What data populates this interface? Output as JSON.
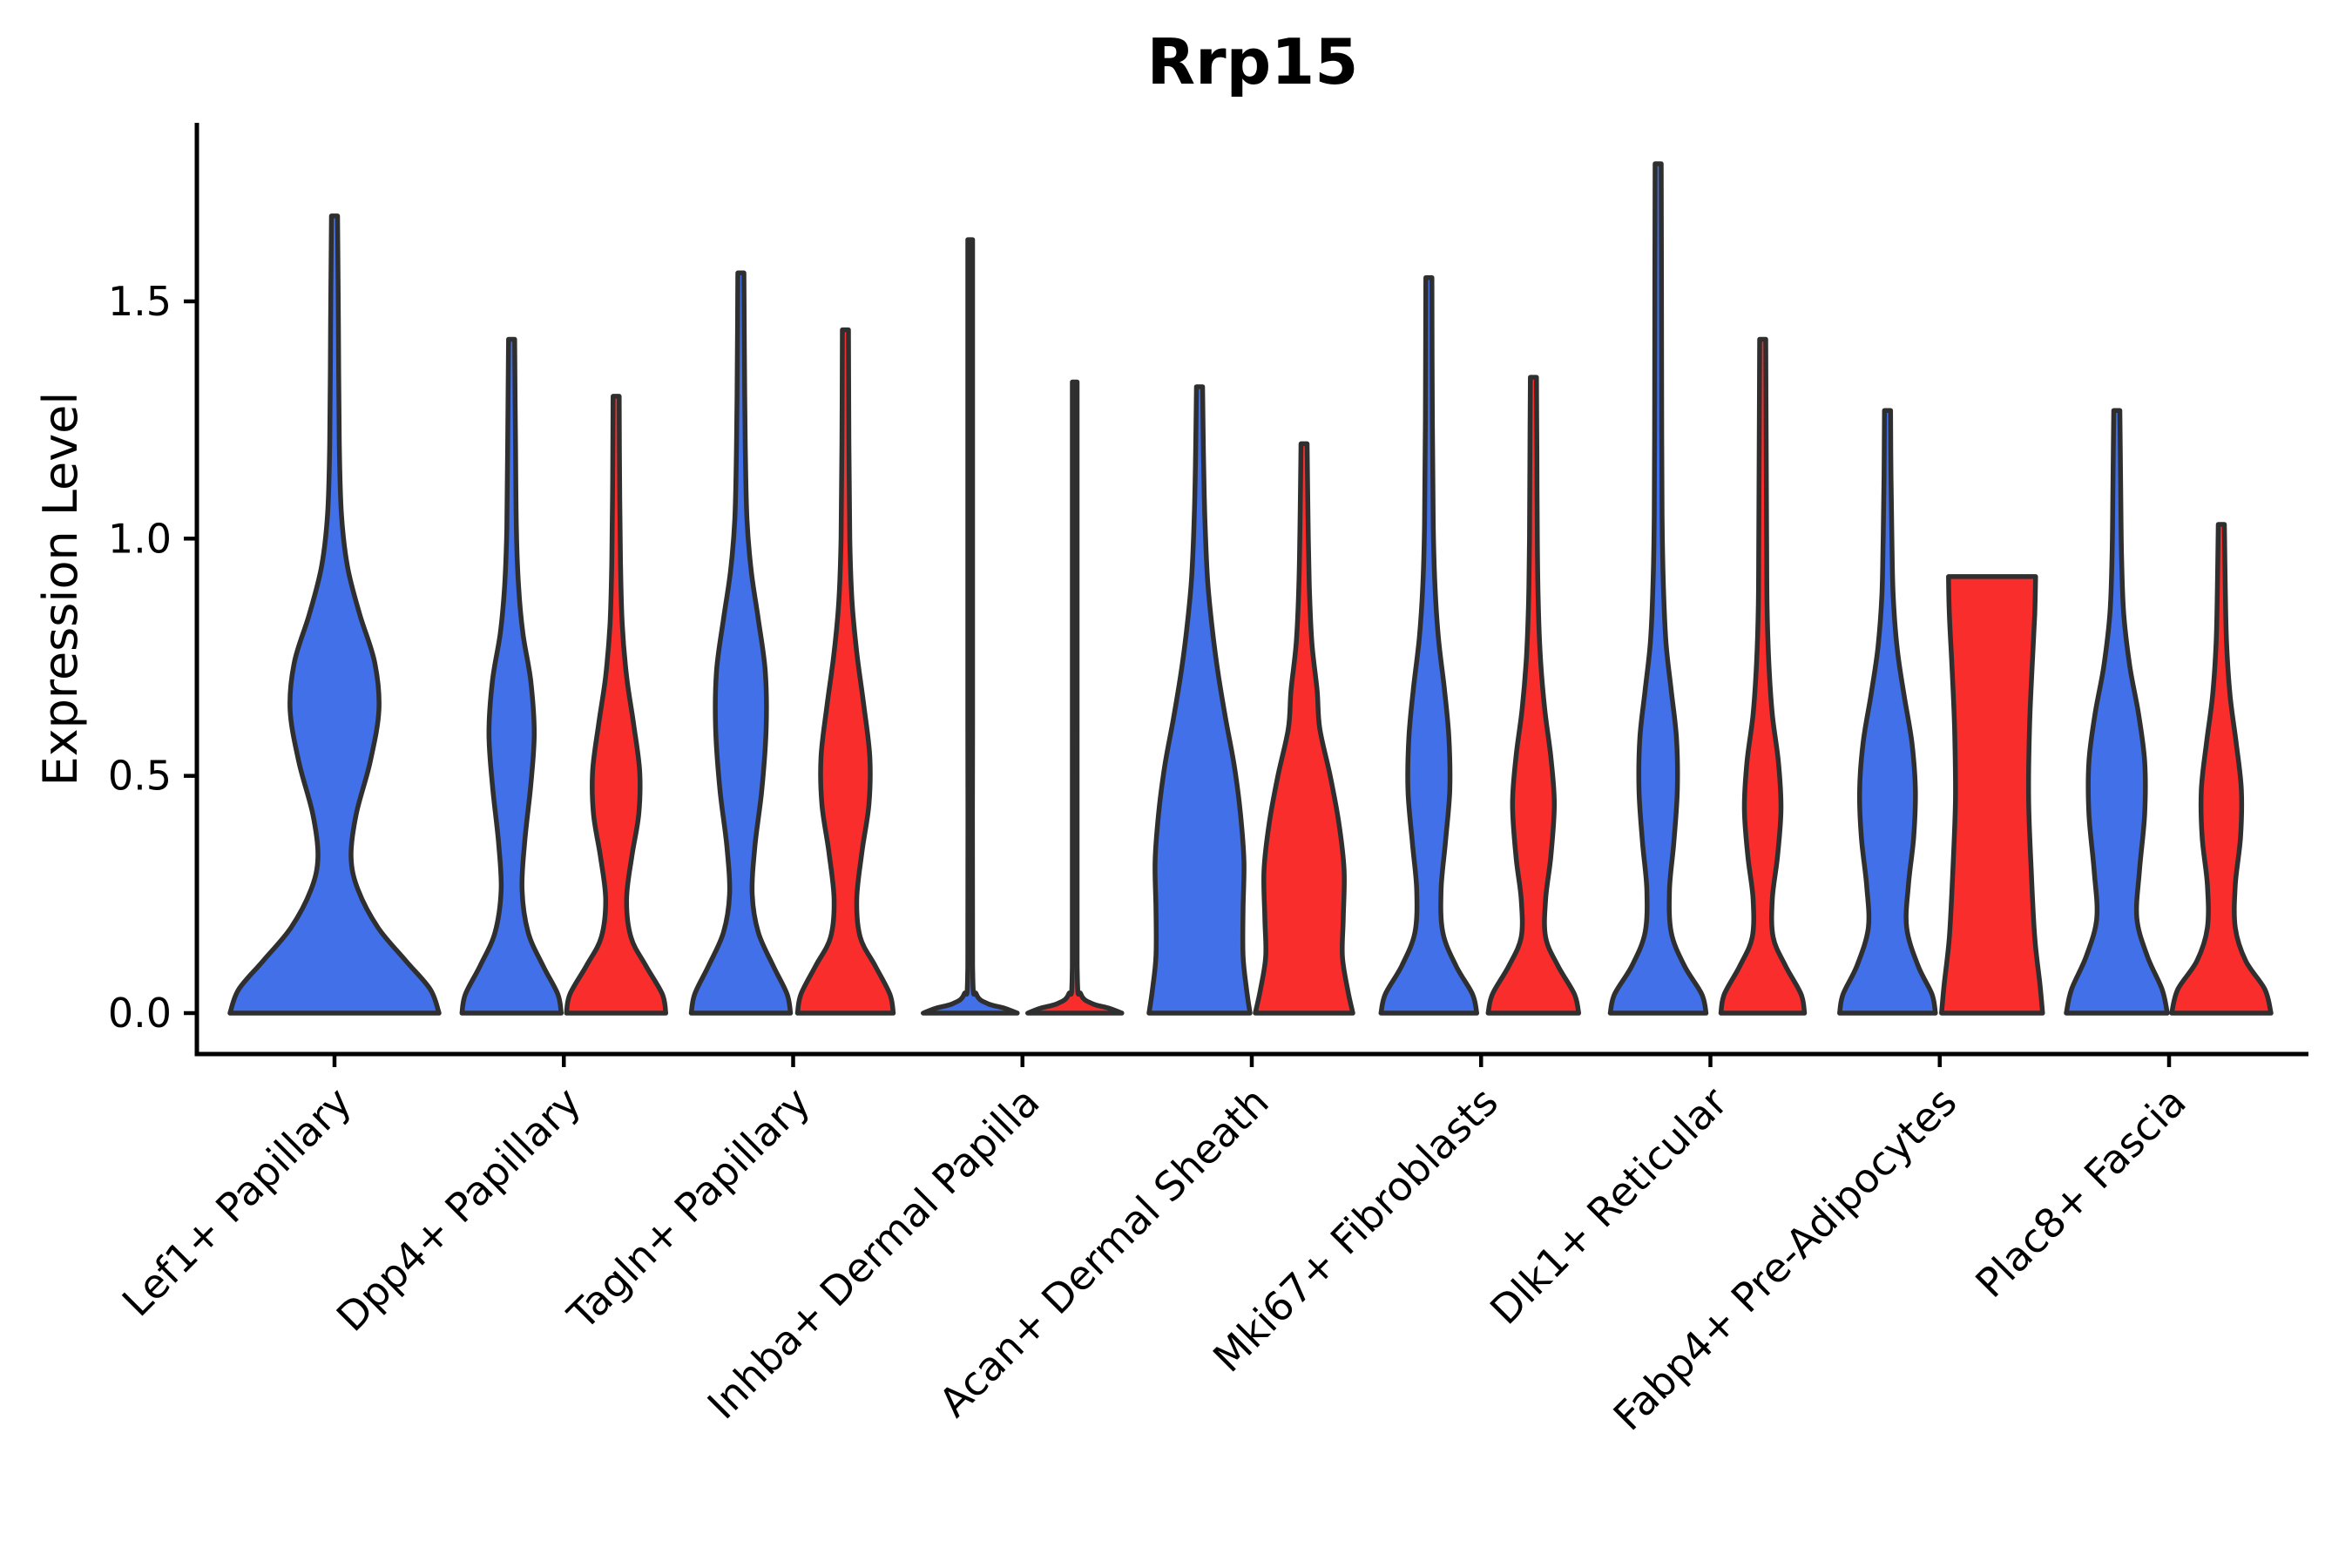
{
  "title": "Rrp15",
  "y_axis": {
    "label": "Expression Level",
    "ticks": [
      "0.0",
      "0.5",
      "1.0",
      "1.5"
    ],
    "tick_values": [
      0.0,
      0.5,
      1.0,
      1.5
    ]
  },
  "x_axis": {
    "categories": [
      "Lef1+ Papillary",
      "Dpp4+ Papillary",
      "Tagln+ Papillary",
      "Inhba+ Dermal Papilla",
      "Acan+ Dermal Sheath",
      "Mki67+ Fibroblasts",
      "Dlk1+ Reticular",
      "Fabp4+ Pre-Adipocytes",
      "Plac8+ Fascia"
    ]
  },
  "colors": {
    "blue": "#4170E8",
    "red": "#FA2D2D",
    "outline": "#2F2F2F",
    "axis": "#000000",
    "text": "#000000"
  },
  "chart_data": {
    "type": "violin",
    "title": "Rrp15",
    "xlabel": "",
    "ylabel": "Expression Level",
    "ylim": [
      -0.09,
      1.9
    ],
    "yticks": [
      0.0,
      0.5,
      1.0,
      1.5
    ],
    "grid": false,
    "legend": "none",
    "categories": [
      "Lef1+ Papillary",
      "Dpp4+ Papillary",
      "Tagln+ Papillary",
      "Inhba+ Dermal Papilla",
      "Acan+ Dermal Sheath",
      "Mki67+ Fibroblasts",
      "Dlk1+ Reticular",
      "Fabp4+ Pre-Adipocytes",
      "Plac8+ Fascia"
    ],
    "series": [
      {
        "name": "blue",
        "color": "#4170E8",
        "tip_values": [
          1.68,
          1.42,
          1.56,
          1.63,
          1.32,
          1.55,
          1.79,
          1.27,
          1.27
        ]
      },
      {
        "name": "red",
        "color": "#FA2D2D",
        "tip_values": [
          null,
          1.3,
          1.44,
          1.33,
          1.2,
          1.34,
          1.42,
          0.92,
          1.03
        ]
      }
    ],
    "violins": [
      {
        "category": 0,
        "series": "blue",
        "centered": true,
        "tip": 1.68,
        "flat_top": false,
        "profile": [
          [
            0,
            120
          ],
          [
            0.05,
            110
          ],
          [
            0.11,
            82
          ],
          [
            0.18,
            50
          ],
          [
            0.26,
            27
          ],
          [
            0.33,
            19
          ],
          [
            0.42,
            25
          ],
          [
            0.53,
            41
          ],
          [
            0.64,
            51
          ],
          [
            0.74,
            46
          ],
          [
            0.84,
            29
          ],
          [
            0.94,
            15
          ],
          [
            1.05,
            8
          ],
          [
            1.2,
            5.5
          ],
          [
            1.45,
            4.5
          ],
          [
            1.68,
            3.5
          ]
        ]
      },
      {
        "category": 1,
        "series": "blue",
        "centered": false,
        "tip": 1.42,
        "flat_top": false,
        "profile": [
          [
            0,
            57
          ],
          [
            0.04,
            53
          ],
          [
            0.1,
            36
          ],
          [
            0.17,
            19
          ],
          [
            0.26,
            12
          ],
          [
            0.36,
            15
          ],
          [
            0.48,
            22
          ],
          [
            0.59,
            26
          ],
          [
            0.7,
            22
          ],
          [
            0.8,
            13
          ],
          [
            0.9,
            8
          ],
          [
            1.02,
            5.5
          ],
          [
            1.2,
            4.5
          ],
          [
            1.42,
            3.5
          ]
        ]
      },
      {
        "category": 1,
        "series": "red",
        "centered": false,
        "tip": 1.3,
        "flat_top": false,
        "profile": [
          [
            0,
            57
          ],
          [
            0.04,
            53
          ],
          [
            0.1,
            34
          ],
          [
            0.16,
            17
          ],
          [
            0.24,
            12
          ],
          [
            0.33,
            18
          ],
          [
            0.42,
            26
          ],
          [
            0.51,
            27
          ],
          [
            0.61,
            20
          ],
          [
            0.71,
            12
          ],
          [
            0.82,
            7
          ],
          [
            0.95,
            5
          ],
          [
            1.12,
            4
          ],
          [
            1.3,
            3.5
          ]
        ]
      },
      {
        "category": 2,
        "series": "blue",
        "centered": false,
        "tip": 1.56,
        "flat_top": false,
        "profile": [
          [
            0,
            57
          ],
          [
            0.04,
            53
          ],
          [
            0.1,
            37
          ],
          [
            0.17,
            20
          ],
          [
            0.25,
            13
          ],
          [
            0.35,
            16
          ],
          [
            0.47,
            24
          ],
          [
            0.6,
            29
          ],
          [
            0.72,
            28
          ],
          [
            0.83,
            20
          ],
          [
            0.93,
            12
          ],
          [
            1.04,
            7
          ],
          [
            1.2,
            5
          ],
          [
            1.4,
            4
          ],
          [
            1.56,
            3.5
          ]
        ]
      },
      {
        "category": 2,
        "series": "red",
        "centered": false,
        "tip": 1.44,
        "flat_top": false,
        "profile": [
          [
            0,
            55
          ],
          [
            0.04,
            51
          ],
          [
            0.1,
            34
          ],
          [
            0.16,
            17
          ],
          [
            0.24,
            13
          ],
          [
            0.34,
            19
          ],
          [
            0.44,
            27
          ],
          [
            0.54,
            28
          ],
          [
            0.65,
            21
          ],
          [
            0.76,
            13
          ],
          [
            0.87,
            7.5
          ],
          [
            1.0,
            5
          ],
          [
            1.2,
            4
          ],
          [
            1.44,
            3.5
          ]
        ]
      },
      {
        "category": 3,
        "series": "blue",
        "centered": false,
        "tip": 1.63,
        "flat_top": false,
        "profile": [
          [
            0,
            54
          ],
          [
            0.01,
            40
          ],
          [
            0.02,
            20
          ],
          [
            0.04,
            7
          ],
          [
            0.1,
            2.8
          ],
          [
            0.6,
            2.8
          ],
          [
            1.1,
            2.8
          ],
          [
            1.63,
            2.8
          ]
        ]
      },
      {
        "category": 3,
        "series": "red",
        "centered": false,
        "tip": 1.33,
        "flat_top": false,
        "profile": [
          [
            0,
            54
          ],
          [
            0.01,
            40
          ],
          [
            0.02,
            20
          ],
          [
            0.04,
            7
          ],
          [
            0.1,
            2.8
          ],
          [
            0.6,
            2.8
          ],
          [
            1.33,
            2.8
          ]
        ]
      },
      {
        "category": 4,
        "series": "blue",
        "centered": false,
        "tip": 1.32,
        "flat_top": false,
        "profile": [
          [
            0,
            58
          ],
          [
            0.05,
            54
          ],
          [
            0.12,
            50
          ],
          [
            0.22,
            50
          ],
          [
            0.32,
            51
          ],
          [
            0.42,
            47
          ],
          [
            0.52,
            40
          ],
          [
            0.62,
            30
          ],
          [
            0.72,
            21
          ],
          [
            0.82,
            14
          ],
          [
            0.92,
            9
          ],
          [
            1.05,
            6
          ],
          [
            1.18,
            4.5
          ],
          [
            1.32,
            3.5
          ]
        ]
      },
      {
        "category": 4,
        "series": "red",
        "centered": false,
        "tip": 1.2,
        "flat_top": false,
        "profile": [
          [
            0,
            56
          ],
          [
            0.05,
            50
          ],
          [
            0.12,
            44
          ],
          [
            0.2,
            45
          ],
          [
            0.3,
            46
          ],
          [
            0.4,
            40
          ],
          [
            0.5,
            30
          ],
          [
            0.6,
            18
          ],
          [
            0.68,
            15
          ],
          [
            0.78,
            9
          ],
          [
            0.9,
            6
          ],
          [
            1.05,
            4.5
          ],
          [
            1.2,
            3.5
          ]
        ]
      },
      {
        "category": 5,
        "series": "blue",
        "centered": false,
        "tip": 1.55,
        "flat_top": false,
        "profile": [
          [
            0,
            55
          ],
          [
            0.04,
            50
          ],
          [
            0.1,
            31
          ],
          [
            0.17,
            16
          ],
          [
            0.26,
            14
          ],
          [
            0.36,
            19
          ],
          [
            0.47,
            24
          ],
          [
            0.58,
            23
          ],
          [
            0.68,
            18
          ],
          [
            0.79,
            11
          ],
          [
            0.9,
            7
          ],
          [
            1.03,
            5
          ],
          [
            1.25,
            4
          ],
          [
            1.55,
            3.5
          ]
        ]
      },
      {
        "category": 5,
        "series": "red",
        "centered": false,
        "tip": 1.34,
        "flat_top": false,
        "profile": [
          [
            0,
            52
          ],
          [
            0.04,
            47
          ],
          [
            0.1,
            28
          ],
          [
            0.16,
            14
          ],
          [
            0.24,
            14
          ],
          [
            0.33,
            20
          ],
          [
            0.44,
            24
          ],
          [
            0.54,
            20
          ],
          [
            0.64,
            13
          ],
          [
            0.75,
            8
          ],
          [
            0.87,
            5.5
          ],
          [
            1.0,
            4.5
          ],
          [
            1.18,
            4
          ],
          [
            1.34,
            3.5
          ]
        ]
      },
      {
        "category": 6,
        "series": "blue",
        "centered": false,
        "tip": 1.79,
        "flat_top": false,
        "profile": [
          [
            0,
            55
          ],
          [
            0.04,
            50
          ],
          [
            0.1,
            30
          ],
          [
            0.17,
            15
          ],
          [
            0.26,
            13
          ],
          [
            0.36,
            18
          ],
          [
            0.47,
            22
          ],
          [
            0.58,
            21
          ],
          [
            0.68,
            15
          ],
          [
            0.78,
            9
          ],
          [
            0.9,
            6
          ],
          [
            1.05,
            4.5
          ],
          [
            1.3,
            4
          ],
          [
            1.55,
            3.8
          ],
          [
            1.79,
            3.5
          ]
        ]
      },
      {
        "category": 6,
        "series": "red",
        "centered": false,
        "tip": 1.42,
        "flat_top": false,
        "profile": [
          [
            0,
            48
          ],
          [
            0.04,
            44
          ],
          [
            0.1,
            26
          ],
          [
            0.16,
            12
          ],
          [
            0.24,
            11
          ],
          [
            0.33,
            17
          ],
          [
            0.43,
            21
          ],
          [
            0.53,
            18
          ],
          [
            0.63,
            11
          ],
          [
            0.74,
            7
          ],
          [
            0.86,
            5
          ],
          [
            1.0,
            4.5
          ],
          [
            1.2,
            4
          ],
          [
            1.42,
            3.5
          ]
        ]
      },
      {
        "category": 7,
        "series": "blue",
        "centered": false,
        "tip": 1.27,
        "flat_top": false,
        "profile": [
          [
            0,
            55
          ],
          [
            0.04,
            51
          ],
          [
            0.1,
            35
          ],
          [
            0.18,
            22
          ],
          [
            0.27,
            24
          ],
          [
            0.37,
            30
          ],
          [
            0.47,
            32
          ],
          [
            0.57,
            28
          ],
          [
            0.67,
            19
          ],
          [
            0.77,
            11
          ],
          [
            0.88,
            6.5
          ],
          [
            1.0,
            5
          ],
          [
            1.13,
            4
          ],
          [
            1.27,
            3.5
          ]
        ]
      },
      {
        "category": 7,
        "series": "red",
        "centered": false,
        "tip": 0.92,
        "flat_top": true,
        "profile": [
          [
            0,
            58
          ],
          [
            0.06,
            55
          ],
          [
            0.16,
            49
          ],
          [
            0.3,
            45
          ],
          [
            0.45,
            42
          ],
          [
            0.6,
            43
          ],
          [
            0.73,
            46
          ],
          [
            0.84,
            49
          ],
          [
            0.92,
            50
          ]
        ]
      },
      {
        "category": 8,
        "series": "blue",
        "centered": false,
        "tip": 1.27,
        "flat_top": false,
        "profile": [
          [
            0,
            58
          ],
          [
            0.05,
            52
          ],
          [
            0.12,
            35
          ],
          [
            0.2,
            23
          ],
          [
            0.3,
            26
          ],
          [
            0.42,
            32
          ],
          [
            0.53,
            32
          ],
          [
            0.63,
            25
          ],
          [
            0.73,
            15
          ],
          [
            0.84,
            8
          ],
          [
            0.96,
            5.5
          ],
          [
            1.1,
            4.5
          ],
          [
            1.27,
            3.5
          ]
        ]
      },
      {
        "category": 8,
        "series": "red",
        "centered": false,
        "tip": 1.03,
        "flat_top": false,
        "profile": [
          [
            0,
            57
          ],
          [
            0.05,
            50
          ],
          [
            0.11,
            28
          ],
          [
            0.18,
            16
          ],
          [
            0.27,
            16
          ],
          [
            0.37,
            22
          ],
          [
            0.47,
            23
          ],
          [
            0.57,
            17
          ],
          [
            0.67,
            10
          ],
          [
            0.78,
            6
          ],
          [
            0.9,
            4.5
          ],
          [
            1.03,
            3.5
          ]
        ]
      }
    ]
  }
}
